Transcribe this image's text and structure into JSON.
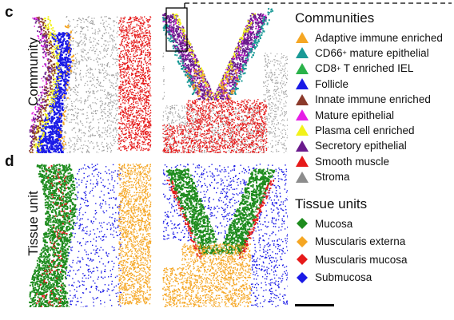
{
  "panels": {
    "c": {
      "letter": "c",
      "row_label": "Community"
    },
    "d": {
      "letter": "d",
      "row_label": "Tissue unit"
    }
  },
  "legend_communities": {
    "title": "Communities",
    "items": [
      {
        "label": "Adaptive immune enriched",
        "color": "#f5a623",
        "icon": "triangle"
      },
      {
        "label": "CD66",
        "sup": "+",
        "rest": " mature epithelial",
        "color": "#1a9a96",
        "icon": "triangle"
      },
      {
        "label": "CD8",
        "sup": "+",
        "rest": " T enriched IEL",
        "color": "#2ab24a",
        "icon": "triangle"
      },
      {
        "label": "Follicle",
        "color": "#1a1ae6",
        "icon": "triangle"
      },
      {
        "label": "Innate immune enriched",
        "color": "#8b3a2b",
        "icon": "triangle"
      },
      {
        "label": "Mature epithelial",
        "color": "#e61ee6",
        "icon": "triangle"
      },
      {
        "label": "Plasma cell enriched",
        "color": "#f2f21a",
        "icon": "triangle"
      },
      {
        "label": "Secretory epithelial",
        "color": "#6a1a8c",
        "icon": "triangle"
      },
      {
        "label": "Smooth muscle",
        "color": "#e61a1a",
        "icon": "triangle"
      },
      {
        "label": "Stroma",
        "color": "#8c8c8c",
        "icon": "triangle"
      }
    ]
  },
  "legend_tissue_units": {
    "title": "Tissue units",
    "items": [
      {
        "label": "Mucosa",
        "color": "#1e8c1e",
        "icon": "diamond"
      },
      {
        "label": "Muscularis externa",
        "color": "#f5a623",
        "icon": "diamond"
      },
      {
        "label": "Muscularis mucosa",
        "color": "#e61a1a",
        "icon": "diamond"
      },
      {
        "label": "Submucosa",
        "color": "#1a1ae6",
        "icon": "diamond"
      }
    ]
  }
}
